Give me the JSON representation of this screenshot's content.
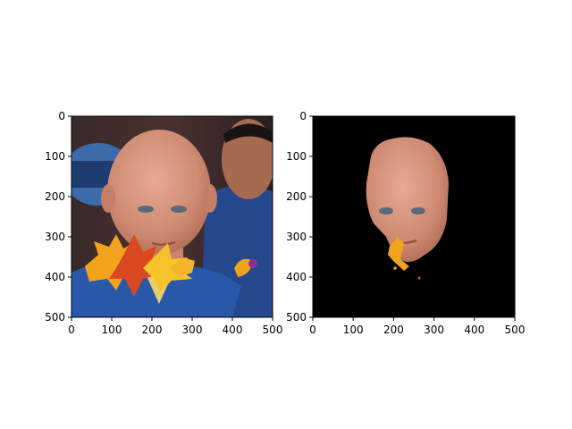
{
  "chart_data": [
    {
      "type": "image",
      "title": "",
      "xlabel": "",
      "ylabel": "",
      "xlim": [
        0,
        500
      ],
      "ylim": [
        500,
        0
      ],
      "xticks": [
        0,
        100,
        200,
        300,
        400,
        500
      ],
      "yticks": [
        0,
        100,
        200,
        300,
        400,
        500
      ],
      "grid": false,
      "image_content": "face photo with autumn leaves overlay"
    },
    {
      "type": "image",
      "title": "",
      "xlabel": "",
      "ylabel": "",
      "xlim": [
        0,
        500
      ],
      "ylim": [
        500,
        0
      ],
      "xticks": [
        0,
        100,
        200,
        300,
        400,
        500
      ],
      "yticks": [
        0,
        100,
        200,
        300,
        400,
        500
      ],
      "grid": false,
      "image_content": "segmented face on black background"
    }
  ],
  "colors": {
    "background": "#ffffff",
    "mask_background": "#000000",
    "skin": "#d79a83",
    "shirt": "#2a58a8",
    "leaf_orange": "#f2a21d",
    "leaf_red": "#d9481e",
    "leaf_yellow": "#f7c22a"
  },
  "icons": [
    "face-image",
    "leaf-overlay",
    "segmentation-mask"
  ]
}
